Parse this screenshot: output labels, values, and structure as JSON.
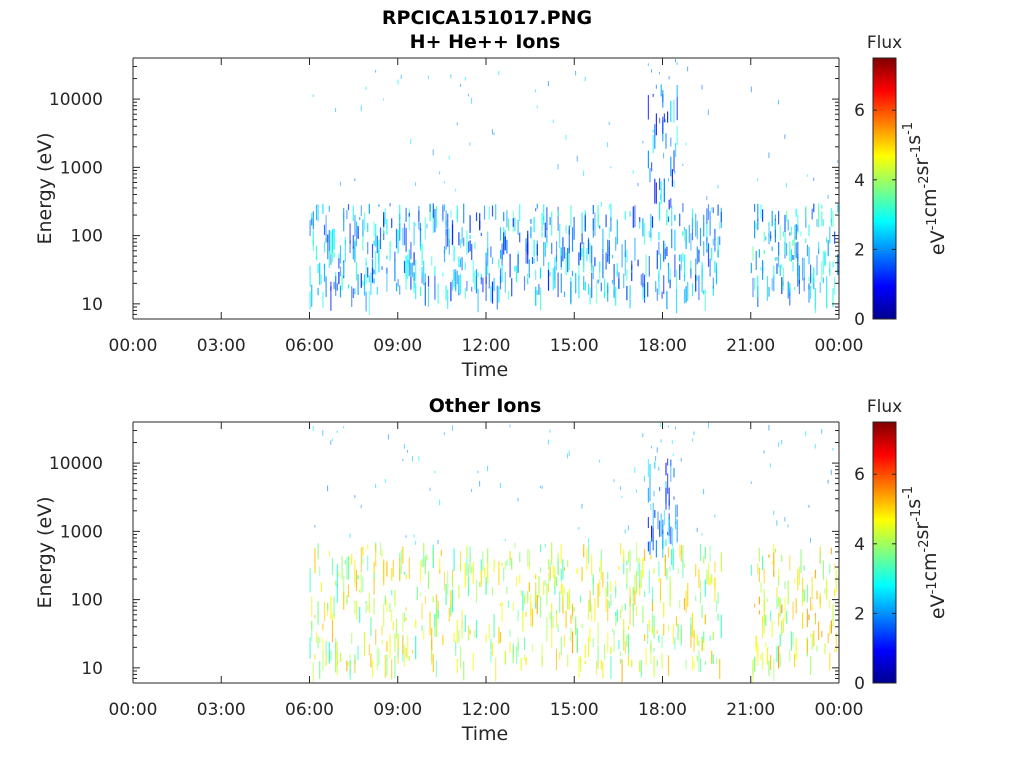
{
  "figure": {
    "title_line1": "RPCICA151017.PNG"
  },
  "chart_data": [
    {
      "type": "heatmap",
      "title": "H+ He++ Ions",
      "xlabel": "Time",
      "ylabel": "Energy (eV)",
      "x_ticks": [
        "00:00",
        "03:00",
        "06:00",
        "09:00",
        "12:00",
        "15:00",
        "18:00",
        "21:00",
        "00:00"
      ],
      "x_range_hours": [
        0,
        24
      ],
      "y_scale": "log",
      "y_ticks": [
        "10",
        "100",
        "1000",
        "10000"
      ],
      "y_range": [
        6,
        40000
      ],
      "colorbar": {
        "title": "Flux",
        "label": "eV-1cm-2sr-1s-1",
        "label_parts": [
          "eV",
          "-1",
          "cm",
          "-2",
          "sr",
          "-1",
          "s",
          "-1"
        ],
        "ticks": [
          "0",
          "2",
          "4",
          "6"
        ],
        "range": [
          0,
          7.5
        ],
        "colormap": "jet"
      },
      "data_gaps_hours": [
        [
          0,
          6
        ],
        [
          20,
          21
        ]
      ],
      "features": [
        {
          "x_hours": [
            6,
            20
          ],
          "energy_eV": [
            15,
            300
          ],
          "flux_level": 2.2
        },
        {
          "x_hours": [
            17.5,
            18.5
          ],
          "energy_eV": [
            300,
            18000
          ],
          "flux_level": 1.8
        },
        {
          "x_hours": [
            21,
            24
          ],
          "energy_eV": [
            15,
            300
          ],
          "flux_level": 2.4
        }
      ]
    },
    {
      "type": "heatmap",
      "title": "Other Ions",
      "xlabel": "Time",
      "ylabel": "Energy (eV)",
      "x_ticks": [
        "00:00",
        "03:00",
        "06:00",
        "09:00",
        "12:00",
        "15:00",
        "18:00",
        "21:00",
        "00:00"
      ],
      "x_range_hours": [
        0,
        24
      ],
      "y_scale": "log",
      "y_ticks": [
        "10",
        "100",
        "1000",
        "10000"
      ],
      "y_range": [
        6,
        40000
      ],
      "colorbar": {
        "title": "Flux",
        "label": "eV-1cm-2sr-1s-1",
        "label_parts": [
          "eV",
          "-1",
          "cm",
          "-2",
          "sr",
          "-1",
          "s",
          "-1"
        ],
        "ticks": [
          "0",
          "2",
          "4",
          "6"
        ],
        "range": [
          0,
          7.5
        ],
        "colormap": "jet"
      },
      "data_gaps_hours": [
        [
          0,
          6
        ],
        [
          20,
          21
        ]
      ],
      "features": [
        {
          "x_hours": [
            6,
            20
          ],
          "energy_eV": [
            12,
            700
          ],
          "flux_level": 4.2
        },
        {
          "x_hours": [
            17.5,
            18.5
          ],
          "energy_eV": [
            700,
            12000
          ],
          "flux_level": 1.8
        },
        {
          "x_hours": [
            21,
            24
          ],
          "energy_eV": [
            12,
            700
          ],
          "flux_level": 4.4
        }
      ]
    }
  ]
}
